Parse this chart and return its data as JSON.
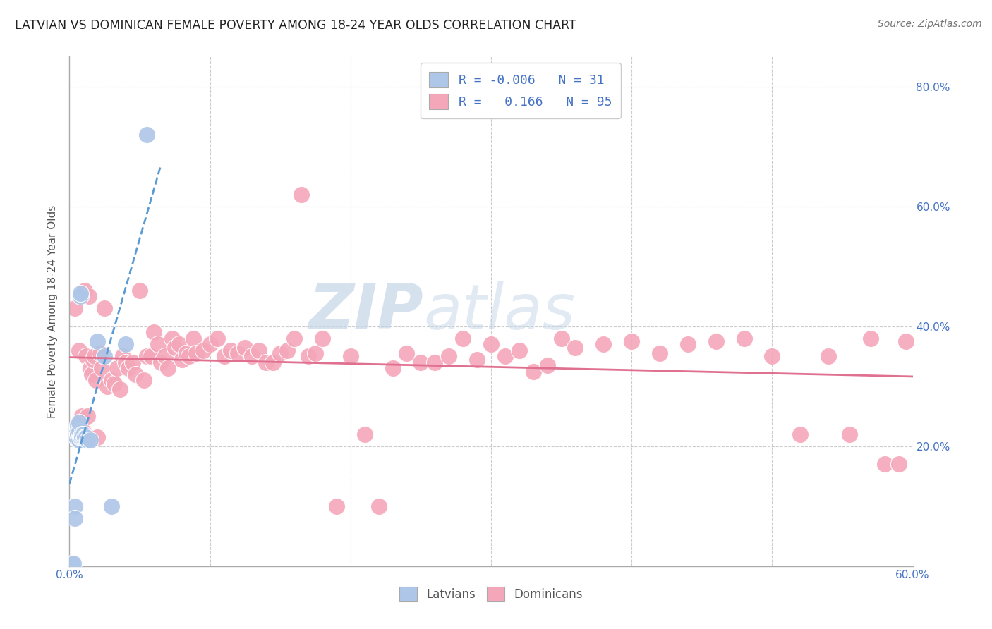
{
  "title": "LATVIAN VS DOMINICAN FEMALE POVERTY AMONG 18-24 YEAR OLDS CORRELATION CHART",
  "source": "Source: ZipAtlas.com",
  "ylabel": "Female Poverty Among 18-24 Year Olds",
  "x_min": 0.0,
  "x_max": 0.6,
  "y_min": 0.0,
  "y_max": 0.85,
  "latvian_color": "#aec6e8",
  "dominican_color": "#f4a7b9",
  "latvian_line_color": "#5b9bd5",
  "dominican_line_color": "#e07090",
  "R_latvian": -0.006,
  "N_latvian": 31,
  "R_dominican": 0.166,
  "N_dominican": 95,
  "background_color": "#ffffff",
  "grid_color": "#cccccc",
  "axis_color": "#4472c4",
  "watermark_zip": "ZIP",
  "watermark_atlas": "atlas",
  "latvians_x": [
    0.001,
    0.002,
    0.003,
    0.004,
    0.004,
    0.005,
    0.005,
    0.005,
    0.006,
    0.006,
    0.006,
    0.007,
    0.007,
    0.007,
    0.007,
    0.008,
    0.008,
    0.008,
    0.009,
    0.009,
    0.01,
    0.01,
    0.011,
    0.012,
    0.013,
    0.015,
    0.02,
    0.025,
    0.03,
    0.04,
    0.055
  ],
  "latvians_y": [
    0.003,
    0.005,
    0.005,
    0.1,
    0.08,
    0.22,
    0.225,
    0.215,
    0.22,
    0.23,
    0.235,
    0.215,
    0.225,
    0.24,
    0.21,
    0.45,
    0.455,
    0.215,
    0.22,
    0.215,
    0.215,
    0.22,
    0.215,
    0.215,
    0.21,
    0.21,
    0.375,
    0.35,
    0.1,
    0.37,
    0.72
  ],
  "dominicans_x": [
    0.004,
    0.006,
    0.007,
    0.009,
    0.01,
    0.011,
    0.012,
    0.013,
    0.014,
    0.015,
    0.016,
    0.017,
    0.018,
    0.019,
    0.02,
    0.022,
    0.023,
    0.025,
    0.027,
    0.03,
    0.032,
    0.034,
    0.036,
    0.038,
    0.04,
    0.042,
    0.045,
    0.047,
    0.05,
    0.053,
    0.055,
    0.058,
    0.06,
    0.063,
    0.065,
    0.068,
    0.07,
    0.073,
    0.075,
    0.078,
    0.08,
    0.083,
    0.085,
    0.088,
    0.09,
    0.095,
    0.1,
    0.105,
    0.11,
    0.115,
    0.12,
    0.125,
    0.13,
    0.135,
    0.14,
    0.145,
    0.15,
    0.155,
    0.16,
    0.165,
    0.17,
    0.175,
    0.18,
    0.19,
    0.2,
    0.21,
    0.22,
    0.23,
    0.24,
    0.25,
    0.26,
    0.27,
    0.28,
    0.29,
    0.3,
    0.31,
    0.32,
    0.33,
    0.34,
    0.35,
    0.36,
    0.38,
    0.4,
    0.42,
    0.44,
    0.46,
    0.48,
    0.5,
    0.52,
    0.54,
    0.555,
    0.57,
    0.58,
    0.59,
    0.595
  ],
  "dominicans_y": [
    0.43,
    0.215,
    0.36,
    0.25,
    0.225,
    0.46,
    0.35,
    0.25,
    0.45,
    0.33,
    0.32,
    0.345,
    0.35,
    0.31,
    0.215,
    0.355,
    0.33,
    0.43,
    0.3,
    0.31,
    0.305,
    0.33,
    0.295,
    0.35,
    0.34,
    0.33,
    0.34,
    0.32,
    0.46,
    0.31,
    0.35,
    0.35,
    0.39,
    0.37,
    0.34,
    0.35,
    0.33,
    0.38,
    0.365,
    0.37,
    0.345,
    0.355,
    0.35,
    0.38,
    0.355,
    0.36,
    0.37,
    0.38,
    0.35,
    0.36,
    0.355,
    0.365,
    0.35,
    0.36,
    0.34,
    0.34,
    0.355,
    0.36,
    0.38,
    0.62,
    0.35,
    0.355,
    0.38,
    0.1,
    0.35,
    0.22,
    0.1,
    0.33,
    0.355,
    0.34,
    0.34,
    0.35,
    0.38,
    0.345,
    0.37,
    0.35,
    0.36,
    0.325,
    0.335,
    0.38,
    0.365,
    0.37,
    0.375,
    0.355,
    0.37,
    0.375,
    0.38,
    0.35,
    0.22,
    0.35,
    0.22,
    0.38,
    0.17,
    0.17,
    0.375
  ]
}
